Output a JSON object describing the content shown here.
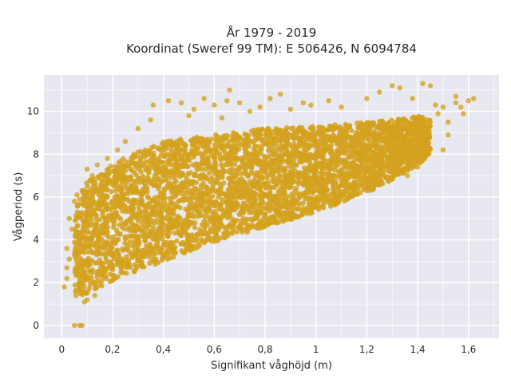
{
  "chart_data": {
    "type": "scatter",
    "title_line1": "År 1979 - 2019",
    "title_line2": "Koordinat (Sweref 99 TM): E 506426, N 6094784",
    "xlabel": "Signifikant våghöjd (m)",
    "ylabel": "Vågperiod (s)",
    "xlim": [
      -0.07,
      1.72
    ],
    "ylim": [
      -0.6,
      11.7
    ],
    "xticks": [
      0,
      0.2,
      0.4,
      0.6,
      0.8,
      1,
      1.2,
      1.4,
      1.6
    ],
    "xtick_labels": [
      "0",
      "0,2",
      "0,4",
      "0,6",
      "0,8",
      "1",
      "1,2",
      "1,4",
      "1,6"
    ],
    "yticks": [
      0,
      2,
      4,
      6,
      8,
      10
    ],
    "ytick_labels": [
      "0",
      "2",
      "4",
      "6",
      "8",
      "10"
    ],
    "grid": true,
    "marker_color": "#D4A21F",
    "plot_bg": "#E8E8F0",
    "band": [
      [
        0.05,
        1.3,
        5.6
      ],
      [
        0.1,
        1.5,
        6.7
      ],
      [
        0.2,
        2.1,
        7.6
      ],
      [
        0.4,
        3.0,
        8.6
      ],
      [
        0.6,
        3.9,
        8.9
      ],
      [
        0.8,
        4.6,
        9.2
      ],
      [
        1.0,
        5.3,
        9.3
      ],
      [
        1.2,
        6.2,
        9.5
      ],
      [
        1.3,
        6.8,
        9.6
      ],
      [
        1.4,
        7.5,
        9.8
      ],
      [
        1.45,
        8.0,
        9.6
      ]
    ],
    "outliers": [
      [
        0.02,
        2.7
      ],
      [
        0.03,
        3.1
      ],
      [
        0.02,
        3.6
      ],
      [
        0.04,
        4.5
      ],
      [
        0.03,
        5.0
      ],
      [
        0.05,
        5.8
      ],
      [
        0.06,
        6.1
      ],
      [
        0.07,
        5.9
      ],
      [
        0.08,
        6.3
      ],
      [
        0.07,
        0.0
      ],
      [
        0.08,
        0.0
      ],
      [
        0.05,
        0.0
      ],
      [
        0.12,
        7.0
      ],
      [
        0.14,
        7.5
      ],
      [
        0.18,
        7.8
      ],
      [
        0.1,
        7.3
      ],
      [
        0.22,
        8.2
      ],
      [
        0.25,
        8.6
      ],
      [
        0.3,
        9.2
      ],
      [
        0.35,
        9.6
      ],
      [
        0.36,
        10.3
      ],
      [
        0.42,
        10.5
      ],
      [
        0.47,
        10.4
      ],
      [
        0.5,
        9.8
      ],
      [
        0.52,
        10.1
      ],
      [
        0.56,
        10.6
      ],
      [
        0.6,
        10.3
      ],
      [
        0.63,
        9.7
      ],
      [
        0.65,
        10.5
      ],
      [
        0.66,
        11.0
      ],
      [
        0.7,
        10.4
      ],
      [
        0.74,
        10.0
      ],
      [
        0.78,
        10.2
      ],
      [
        0.82,
        10.6
      ],
      [
        0.86,
        10.8
      ],
      [
        0.9,
        10.1
      ],
      [
        0.95,
        10.4
      ],
      [
        0.98,
        10.3
      ],
      [
        1.05,
        10.5
      ],
      [
        1.1,
        10.2
      ],
      [
        1.2,
        10.6
      ],
      [
        1.25,
        10.9
      ],
      [
        1.3,
        11.2
      ],
      [
        1.33,
        11.1
      ],
      [
        1.38,
        10.6
      ],
      [
        1.42,
        11.3
      ],
      [
        1.45,
        11.2
      ],
      [
        1.47,
        10.3
      ],
      [
        1.5,
        10.2
      ],
      [
        1.52,
        9.5
      ],
      [
        1.55,
        10.7
      ],
      [
        1.57,
        10.2
      ],
      [
        1.58,
        9.9
      ],
      [
        1.6,
        10.5
      ],
      [
        1.62,
        10.6
      ],
      [
        1.55,
        10.4
      ],
      [
        1.48,
        9.9
      ],
      [
        1.52,
        8.9
      ],
      [
        1.44,
        8.4
      ],
      [
        1.4,
        7.4
      ],
      [
        1.36,
        7.0
      ],
      [
        1.5,
        8.2
      ],
      [
        0.01,
        1.8
      ],
      [
        0.02,
        2.2
      ],
      [
        0.1,
        1.2
      ],
      [
        0.13,
        1.4
      ],
      [
        0.09,
        1.1
      ]
    ]
  }
}
